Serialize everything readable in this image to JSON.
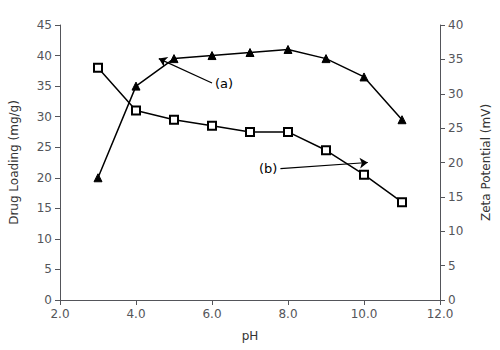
{
  "chart_data": {
    "type": "line",
    "x": [
      3,
      4,
      5,
      6,
      7,
      8,
      9,
      10,
      11
    ],
    "series": [
      {
        "values": [
          20,
          35,
          39.5,
          40,
          40.5,
          41,
          39.5,
          36.5,
          29.5
        ],
        "color": "#000000",
        "marker": "triangle"
      },
      {
        "values": [
          38,
          31,
          29.5,
          28.5,
          27.5,
          27.5,
          24.5,
          20.5,
          16
        ],
        "color": "#000000",
        "marker": "square_open"
      }
    ],
    "xlabel": "pH",
    "ylabel": "Drug Loading (mg/g)",
    "y2label": "Zeta Potential (mV)",
    "xlim": [
      2.0,
      12.0
    ],
    "ylim": [
      0,
      45
    ],
    "y2lim": [
      0,
      40
    ],
    "xticks": [
      {
        "value": 2.0,
        "label": "2.0"
      },
      {
        "value": 4.0,
        "label": "4.0"
      },
      {
        "value": 6.0,
        "label": "6.0"
      },
      {
        "value": 8.0,
        "label": "8.0"
      },
      {
        "value": 10.0,
        "label": "10.0"
      },
      {
        "value": 12.0,
        "label": "12.0"
      }
    ],
    "yticks": [
      0,
      5,
      10,
      15,
      20,
      25,
      30,
      35,
      40,
      45
    ],
    "y2ticks": [
      0,
      5,
      10,
      15,
      20,
      25,
      30,
      35,
      40
    ],
    "grid": false,
    "annotations": [
      {
        "text": "(a)",
        "xy": [
          4.6,
          39.5
        ],
        "xytext": [
          6.0,
          35.5
        ]
      },
      {
        "text": "(b)",
        "xy": [
          10.1,
          22.5
        ],
        "xytext": [
          7.8,
          21.5
        ]
      }
    ]
  }
}
